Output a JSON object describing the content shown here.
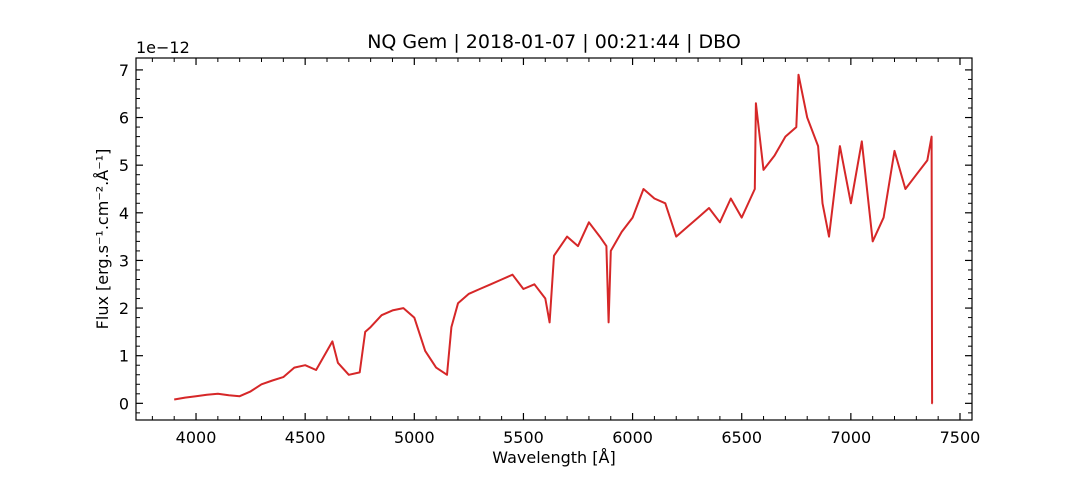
{
  "chart_data": {
    "type": "line",
    "title": "NQ Gem | 2018-01-07 | 00:21:44 | DBO",
    "xlabel": "Wavelength [Å]",
    "ylabel": "Flux [erg.s⁻¹.cm⁻².Å⁻¹]",
    "y_offset_text": "1e−12",
    "xlim": [
      3725,
      7555
    ],
    "ylim": [
      -0.35,
      7.25
    ],
    "xticks": [
      4000,
      4500,
      5000,
      5500,
      6000,
      6500,
      7000,
      7500
    ],
    "yticks": [
      0,
      1,
      2,
      3,
      4,
      5,
      6,
      7
    ],
    "xtick_labels": [
      "4000",
      "4500",
      "5000",
      "5500",
      "6000",
      "6500",
      "7000",
      "7500"
    ],
    "ytick_labels": [
      "0",
      "1",
      "2",
      "3",
      "4",
      "5",
      "6",
      "7"
    ],
    "grid": false,
    "series": [
      {
        "color": "#d62728",
        "x": [
          3900,
          3950,
          4000,
          4050,
          4100,
          4150,
          4200,
          4250,
          4300,
          4350,
          4400,
          4450,
          4500,
          4550,
          4600,
          4625,
          4650,
          4700,
          4750,
          4775,
          4800,
          4850,
          4900,
          4950,
          5000,
          5050,
          5100,
          5150,
          5170,
          5200,
          5250,
          5300,
          5350,
          5400,
          5450,
          5500,
          5550,
          5600,
          5620,
          5640,
          5700,
          5750,
          5800,
          5850,
          5880,
          5890,
          5900,
          5950,
          6000,
          6050,
          6100,
          6150,
          6200,
          6250,
          6300,
          6350,
          6400,
          6450,
          6500,
          6520,
          6560,
          6565,
          6600,
          6650,
          6700,
          6750,
          6760,
          6800,
          6850,
          6870,
          6900,
          6950,
          7000,
          7050,
          7100,
          7150,
          7200,
          7250,
          7300,
          7350,
          7370,
          7372,
          7375
        ],
        "y": [
          0.08,
          0.12,
          0.15,
          0.18,
          0.2,
          0.17,
          0.15,
          0.25,
          0.4,
          0.48,
          0.55,
          0.75,
          0.8,
          0.7,
          1.1,
          1.3,
          0.85,
          0.6,
          0.65,
          1.5,
          1.6,
          1.85,
          1.95,
          2.0,
          1.8,
          1.1,
          0.75,
          0.6,
          1.6,
          2.1,
          2.3,
          2.4,
          2.5,
          2.6,
          2.7,
          2.4,
          2.5,
          2.2,
          1.7,
          3.1,
          3.5,
          3.3,
          3.8,
          3.5,
          3.3,
          1.7,
          3.2,
          3.6,
          3.9,
          4.5,
          4.3,
          4.2,
          3.5,
          3.7,
          3.9,
          4.1,
          3.8,
          4.3,
          3.9,
          4.1,
          4.5,
          6.3,
          4.9,
          5.2,
          5.6,
          5.8,
          6.9,
          6.0,
          5.4,
          4.2,
          3.5,
          5.4,
          4.2,
          5.5,
          3.4,
          3.9,
          5.3,
          4.5,
          4.8,
          5.1,
          5.6,
          0.0,
          0.0
        ]
      }
    ]
  }
}
